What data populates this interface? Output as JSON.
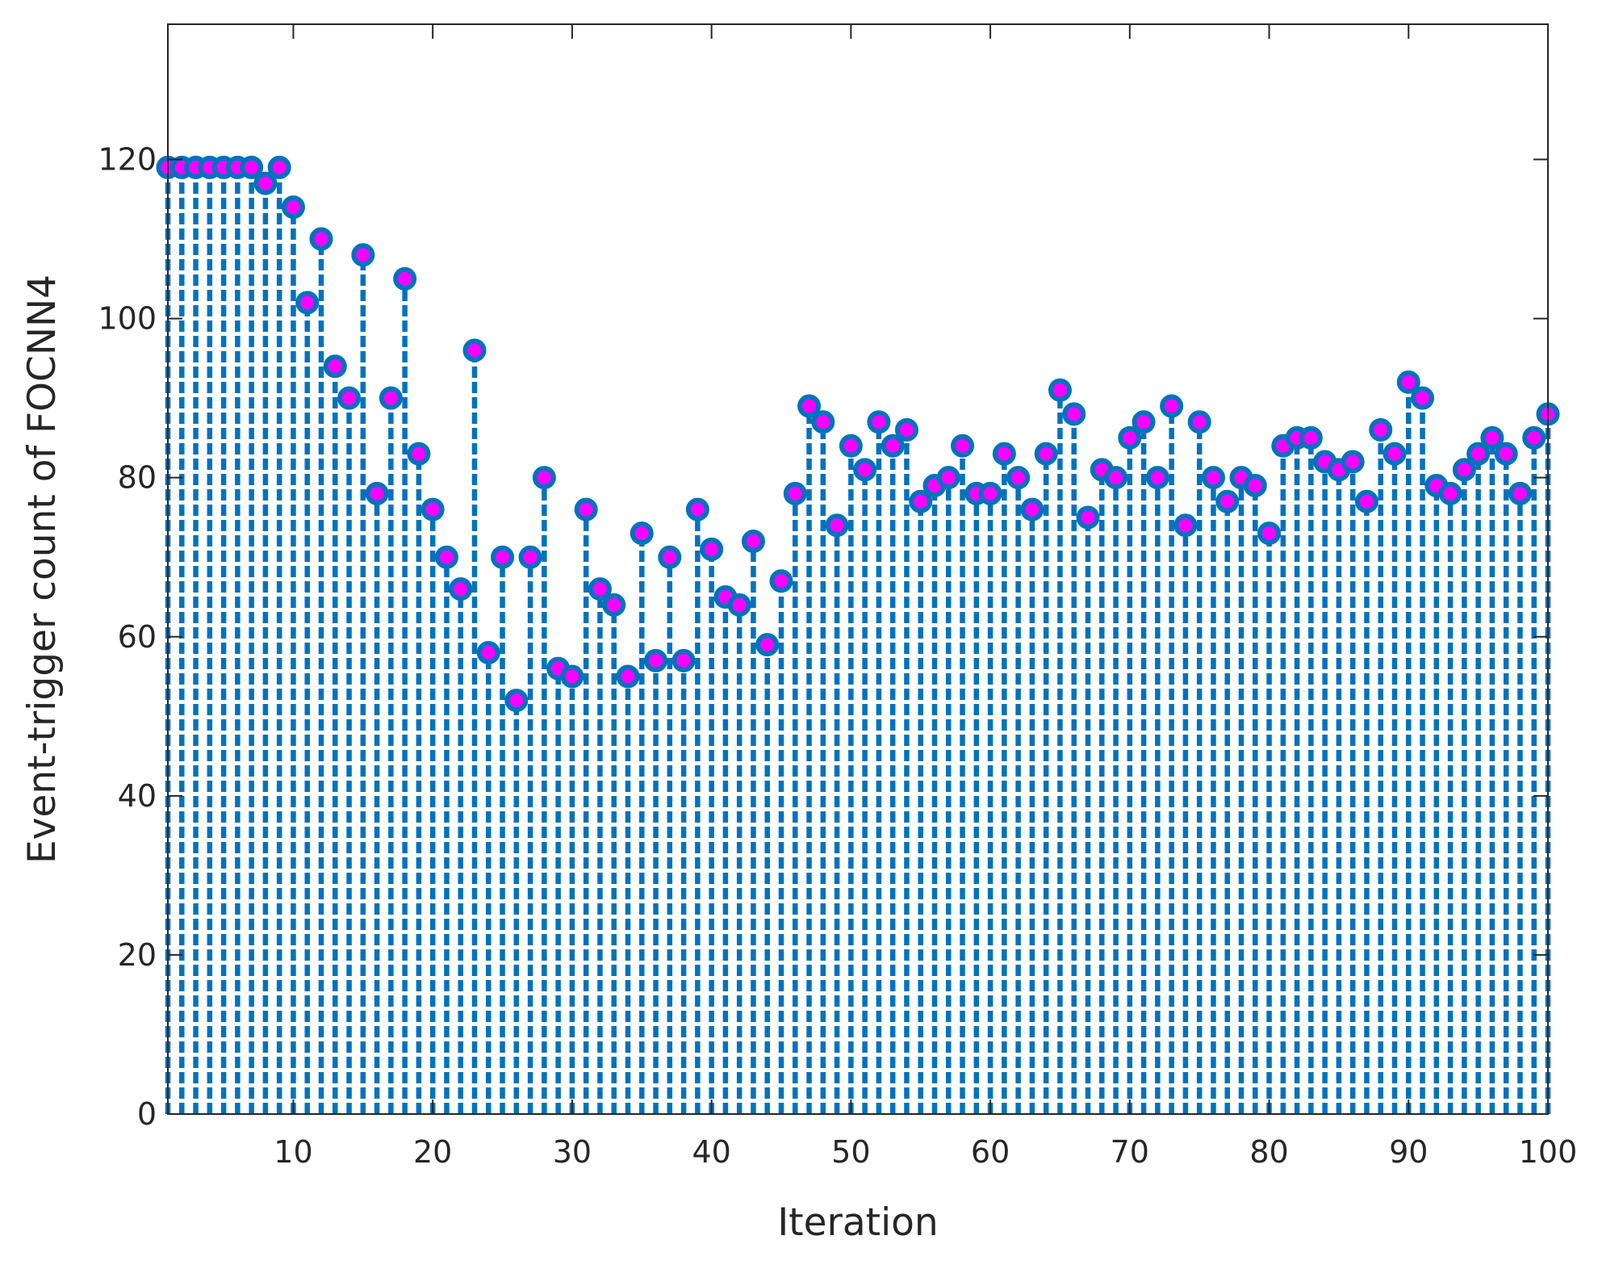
{
  "chart_data": {
    "type": "stem",
    "xlabel": "Iteration",
    "ylabel": "Event-trigger count of FOCNN4",
    "x": [
      1,
      2,
      3,
      4,
      5,
      6,
      7,
      8,
      9,
      10,
      11,
      12,
      13,
      14,
      15,
      16,
      17,
      18,
      19,
      20,
      21,
      22,
      23,
      24,
      25,
      26,
      27,
      28,
      29,
      30,
      31,
      32,
      33,
      34,
      35,
      36,
      37,
      38,
      39,
      40,
      41,
      42,
      43,
      44,
      45,
      46,
      47,
      48,
      49,
      50,
      51,
      52,
      53,
      54,
      55,
      56,
      57,
      58,
      59,
      60,
      61,
      62,
      63,
      64,
      65,
      66,
      67,
      68,
      69,
      70,
      71,
      72,
      73,
      74,
      75,
      76,
      77,
      78,
      79,
      80,
      81,
      82,
      83,
      84,
      85,
      86,
      87,
      88,
      89,
      90,
      91,
      92,
      93,
      94,
      95,
      96,
      97,
      98,
      99,
      100
    ],
    "values": [
      119,
      119,
      119,
      119,
      119,
      119,
      119,
      117,
      119,
      114,
      102,
      110,
      94,
      90,
      108,
      78,
      90,
      105,
      83,
      76,
      70,
      66,
      96,
      58,
      70,
      52,
      70,
      80,
      56,
      55,
      76,
      66,
      64,
      55,
      73,
      57,
      70,
      57,
      76,
      71,
      65,
      64,
      72,
      59,
      67,
      78,
      89,
      87,
      74,
      84,
      81,
      87,
      84,
      86,
      77,
      79,
      80,
      84,
      78,
      78,
      83,
      80,
      76,
      83,
      91,
      88,
      75,
      81,
      80,
      85,
      87,
      80,
      89,
      74,
      87,
      80,
      77,
      80,
      79,
      73,
      84,
      85,
      85,
      82,
      81,
      82,
      77,
      86,
      83,
      92,
      90,
      79,
      78,
      81,
      83,
      85,
      83,
      78,
      85,
      88
    ],
    "color": "#0072bd",
    "marker_color": "#ff00ff",
    "xlim": [
      1,
      100
    ],
    "ylim": [
      0,
      137
    ],
    "xticks": [
      10,
      20,
      30,
      40,
      50,
      60,
      70,
      80,
      90,
      100
    ],
    "yticks": [
      0,
      20,
      40,
      60,
      80,
      100,
      120
    ]
  }
}
